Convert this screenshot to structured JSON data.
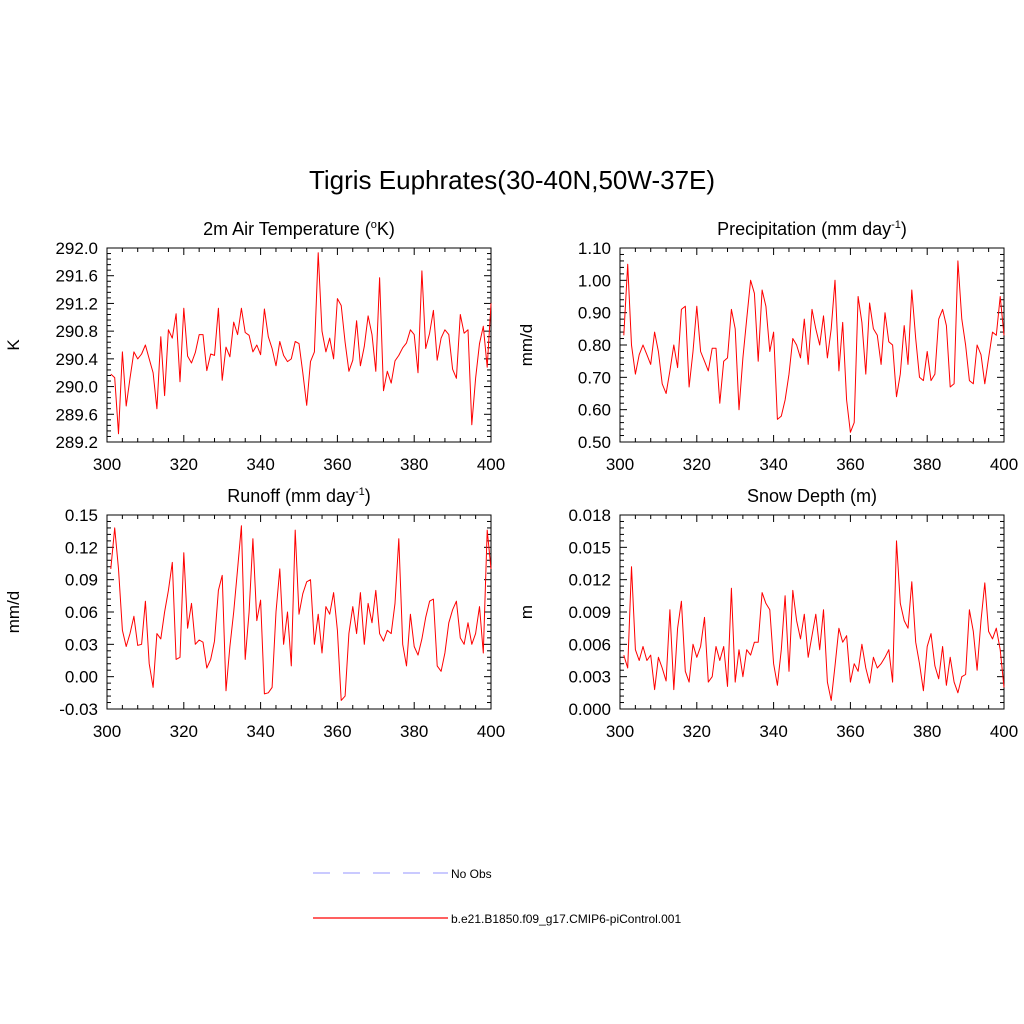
{
  "title": "Tigris Euphrates(30-40N,50W-37E)",
  "colors": {
    "model": "#ff0000",
    "obs": "#aaaaff",
    "axis": "#000000"
  },
  "legend": [
    {
      "label": "No Obs",
      "style": "dashed",
      "color": "#aaaaff"
    },
    {
      "label": "b.e21.B1850.f09_g17.CMIP6-piControl.001",
      "style": "solid",
      "color": "#ff0000"
    }
  ],
  "chart_data": [
    {
      "type": "line",
      "title": "2m Air Temperature (",
      "title_sup": "o",
      "title_tail": "K)",
      "ylabel": "K",
      "xlim": [
        300,
        400
      ],
      "ylim": [
        289.2,
        292.0
      ],
      "xticks": [
        "300",
        "320",
        "340",
        "360",
        "380",
        "400"
      ],
      "yticks": [
        "289.2",
        "289.6",
        "290.0",
        "290.4",
        "290.8",
        "291.2",
        "291.6",
        "292.0"
      ],
      "series": [
        {
          "x_start": 301,
          "values": [
            290.18,
            290.13,
            289.32,
            290.5,
            289.72,
            290.12,
            290.5,
            290.4,
            290.47,
            290.6,
            290.4,
            290.2,
            289.68,
            290.72,
            289.87,
            290.82,
            290.7,
            291.05,
            290.07,
            291.13,
            290.44,
            290.34,
            290.49,
            290.75,
            290.75,
            290.23,
            290.47,
            290.45,
            291.13,
            290.09,
            290.57,
            290.43,
            290.93,
            290.75,
            291.13,
            290.78,
            290.74,
            290.5,
            290.6,
            290.46,
            291.12,
            290.72,
            290.55,
            290.3,
            290.65,
            290.45,
            290.36,
            290.4,
            290.65,
            290.62,
            290.2,
            289.73,
            290.36,
            290.5,
            291.93,
            290.8,
            290.5,
            290.7,
            290.4,
            291.27,
            291.17,
            290.64,
            290.22,
            290.38,
            290.95,
            290.3,
            290.58,
            291.02,
            290.75,
            290.22,
            291.57,
            289.94,
            290.22,
            290.05,
            290.37,
            290.45,
            290.56,
            290.63,
            290.82,
            290.75,
            290.2,
            291.67,
            290.55,
            290.77,
            291.1,
            290.38,
            290.7,
            290.82,
            290.75,
            290.25,
            290.12,
            291.04,
            290.77,
            290.82,
            289.45,
            290.12,
            290.62,
            290.87,
            290.28,
            291.2
          ]
        }
      ]
    },
    {
      "type": "line",
      "title": "Precipitation (mm day",
      "title_sup": "-1",
      "title_tail": ")",
      "ylabel": "mm/d",
      "xlim": [
        300,
        400
      ],
      "ylim": [
        0.5,
        1.1
      ],
      "xticks": [
        "300",
        "320",
        "340",
        "360",
        "380",
        "400"
      ],
      "yticks": [
        "0.50",
        "0.60",
        "0.70",
        "0.80",
        "0.90",
        "1.00",
        "1.10"
      ],
      "series": [
        {
          "x_start": 301,
          "values": [
            0.83,
            1.05,
            0.8,
            0.71,
            0.77,
            0.8,
            0.77,
            0.74,
            0.84,
            0.78,
            0.68,
            0.65,
            0.72,
            0.8,
            0.73,
            0.91,
            0.92,
            0.67,
            0.78,
            0.92,
            0.78,
            0.75,
            0.72,
            0.79,
            0.79,
            0.62,
            0.75,
            0.76,
            0.91,
            0.85,
            0.6,
            0.76,
            0.88,
            1.0,
            0.96,
            0.75,
            0.97,
            0.92,
            0.78,
            0.84,
            0.57,
            0.58,
            0.63,
            0.71,
            0.82,
            0.8,
            0.76,
            0.88,
            0.74,
            0.91,
            0.85,
            0.8,
            0.89,
            0.76,
            0.85,
            1.0,
            0.72,
            0.87,
            0.63,
            0.53,
            0.56,
            0.95,
            0.87,
            0.71,
            0.93,
            0.85,
            0.83,
            0.74,
            0.9,
            0.81,
            0.8,
            0.64,
            0.71,
            0.86,
            0.74,
            0.97,
            0.82,
            0.7,
            0.69,
            0.78,
            0.69,
            0.71,
            0.88,
            0.91,
            0.86,
            0.67,
            0.68,
            1.06,
            0.88,
            0.8,
            0.69,
            0.68,
            0.8,
            0.77,
            0.68,
            0.76,
            0.84,
            0.83,
            0.95,
            0.83
          ]
        }
      ]
    },
    {
      "type": "line",
      "title": "Runoff (mm day",
      "title_sup": "-1",
      "title_tail": ")",
      "ylabel": "mm/d",
      "xlim": [
        300,
        400
      ],
      "ylim": [
        -0.03,
        0.15
      ],
      "xticks": [
        "300",
        "320",
        "340",
        "360",
        "380",
        "400"
      ],
      "yticks": [
        "-0.03",
        "0.00",
        "0.03",
        "0.06",
        "0.09",
        "0.12",
        "0.15"
      ],
      "series": [
        {
          "x_start": 301,
          "values": [
            0.1,
            0.138,
            0.1,
            0.043,
            0.028,
            0.04,
            0.056,
            0.029,
            0.03,
            0.07,
            0.012,
            -0.01,
            0.04,
            0.035,
            0.06,
            0.08,
            0.106,
            0.016,
            0.018,
            0.115,
            0.045,
            0.068,
            0.03,
            0.034,
            0.032,
            0.008,
            0.016,
            0.033,
            0.08,
            0.094,
            -0.013,
            0.028,
            0.06,
            0.1,
            0.14,
            0.016,
            0.06,
            0.128,
            0.052,
            0.071,
            -0.016,
            -0.015,
            -0.01,
            0.06,
            0.1,
            0.03,
            0.06,
            0.01,
            0.136,
            0.058,
            0.077,
            0.088,
            0.09,
            0.03,
            0.058,
            0.022,
            0.065,
            0.058,
            0.078,
            0.043,
            -0.022,
            -0.018,
            0.04,
            0.065,
            0.04,
            0.078,
            0.03,
            0.068,
            0.05,
            0.08,
            0.04,
            0.033,
            0.043,
            0.04,
            0.068,
            0.128,
            0.03,
            0.01,
            0.058,
            0.028,
            0.02,
            0.035,
            0.055,
            0.07,
            0.072,
            0.01,
            0.005,
            0.022,
            0.05,
            0.062,
            0.07,
            0.036,
            0.03,
            0.05,
            0.03,
            0.04,
            0.065,
            0.022,
            0.136,
            0.1
          ]
        }
      ]
    },
    {
      "type": "line",
      "title": "Snow Depth (m)",
      "title_sup": "",
      "title_tail": "",
      "ylabel": "m",
      "xlim": [
        300,
        400
      ],
      "ylim": [
        0.0,
        0.018
      ],
      "xticks": [
        "300",
        "320",
        "340",
        "360",
        "380",
        "400"
      ],
      "yticks": [
        "0.000",
        "0.003",
        "0.006",
        "0.009",
        "0.012",
        "0.015",
        "0.018"
      ],
      "series": [
        {
          "x_start": 301,
          "values": [
            0.005,
            0.0038,
            0.0132,
            0.0055,
            0.0045,
            0.0058,
            0.0045,
            0.005,
            0.0018,
            0.0048,
            0.0038,
            0.0026,
            0.0092,
            0.0018,
            0.0075,
            0.01,
            0.0035,
            0.0025,
            0.006,
            0.0048,
            0.0058,
            0.0085,
            0.0025,
            0.003,
            0.0058,
            0.0045,
            0.0058,
            0.0021,
            0.0112,
            0.0025,
            0.0055,
            0.003,
            0.0055,
            0.005,
            0.0062,
            0.0062,
            0.0108,
            0.0098,
            0.0092,
            0.0042,
            0.0022,
            0.0055,
            0.0105,
            0.0035,
            0.011,
            0.0082,
            0.0065,
            0.0088,
            0.0048,
            0.0068,
            0.0088,
            0.0055,
            0.0092,
            0.0025,
            0.0008,
            0.004,
            0.0075,
            0.0062,
            0.0068,
            0.0025,
            0.0042,
            0.0035,
            0.006,
            0.0038,
            0.0024,
            0.0048,
            0.0038,
            0.0042,
            0.0048,
            0.0055,
            0.0025,
            0.0156,
            0.0098,
            0.0082,
            0.0075,
            0.0118,
            0.0062,
            0.0042,
            0.0017,
            0.0058,
            0.007,
            0.004,
            0.0028,
            0.0058,
            0.0022,
            0.0048,
            0.0025,
            0.0015,
            0.003,
            0.0032,
            0.0092,
            0.0072,
            0.0036,
            0.0082,
            0.0117,
            0.0072,
            0.0065,
            0.0075,
            0.0055,
            0.002
          ]
        }
      ]
    }
  ]
}
